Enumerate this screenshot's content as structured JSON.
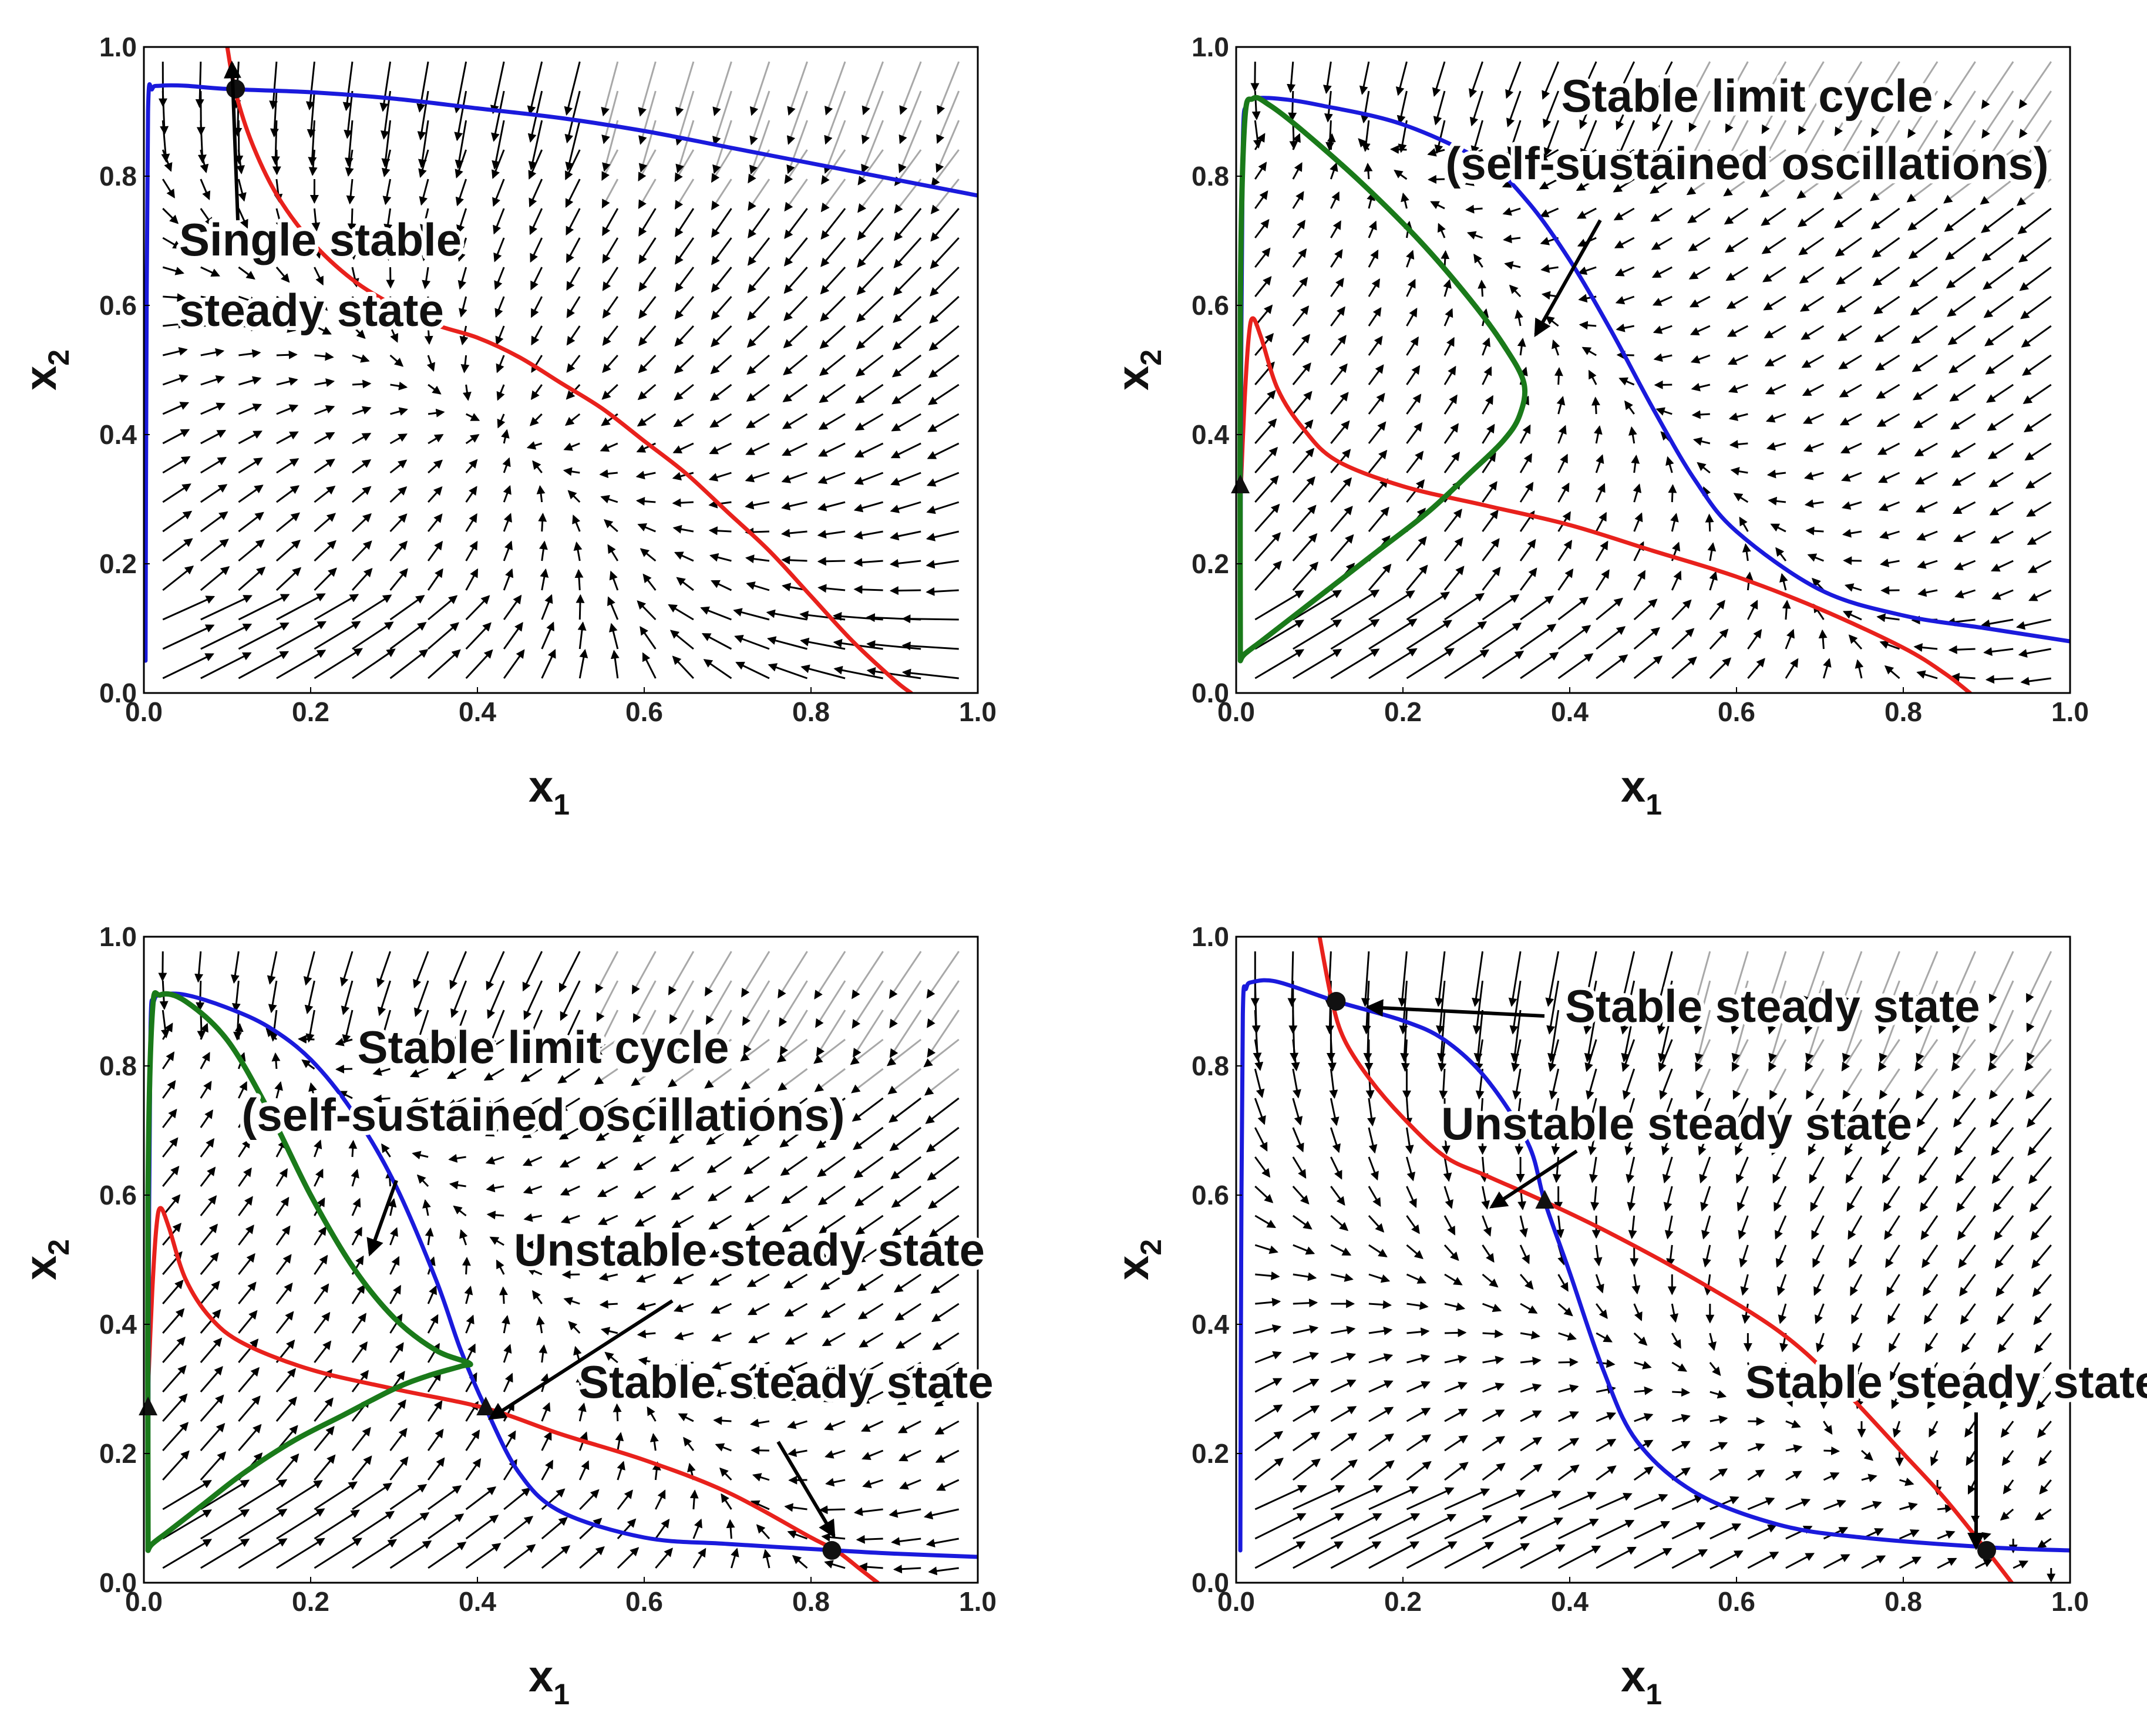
{
  "figure": {
    "panels_count": 4
  },
  "colors": {
    "red_nullcline": "#e8211c",
    "blue_nullcline": "#1a1adc",
    "green_orbit": "#1a7a1a",
    "arrow_dark": "#000000",
    "arrow_light": "#a8a8a8",
    "marker": "#111111"
  },
  "chart_data": [
    {
      "type": "line",
      "panel": 1,
      "xlabel": "x",
      "xlabel_sub": "1",
      "ylabel": "x",
      "ylabel_sub": "2",
      "xlim": [
        0,
        1
      ],
      "ylim": [
        0,
        1
      ],
      "xticks": [
        "0.0",
        "0.2",
        "0.4",
        "0.6",
        "0.8",
        "1.0"
      ],
      "yticks": [
        "0.0",
        "0.2",
        "0.4",
        "0.6",
        "0.8",
        "1.0"
      ],
      "grid": false,
      "vector_field": true,
      "series": [
        {
          "color": "red",
          "x": [
            0.1,
            0.11,
            0.13,
            0.16,
            0.2,
            0.25,
            0.3,
            0.35,
            0.4,
            0.45,
            0.5,
            0.55,
            0.6,
            0.65,
            0.7,
            0.75,
            0.8,
            0.85,
            0.9,
            0.92
          ],
          "y": [
            1.0,
            0.93,
            0.85,
            0.77,
            0.7,
            0.64,
            0.6,
            0.57,
            0.55,
            0.52,
            0.48,
            0.44,
            0.39,
            0.34,
            0.28,
            0.22,
            0.15,
            0.08,
            0.02,
            0.0
          ]
        },
        {
          "color": "blue",
          "x": [
            0.002,
            0.003,
            0.005,
            0.01,
            0.02,
            0.05,
            0.1,
            0.2,
            0.3,
            0.4,
            0.5,
            0.6,
            0.7,
            0.8,
            0.9,
            1.0
          ],
          "y": [
            0.05,
            0.5,
            0.9,
            0.935,
            0.94,
            0.94,
            0.935,
            0.93,
            0.92,
            0.905,
            0.89,
            0.87,
            0.845,
            0.82,
            0.795,
            0.77
          ]
        }
      ],
      "points": [
        {
          "x": 0.11,
          "y": 0.935,
          "kind": "stable"
        }
      ],
      "annotations": [
        {
          "text_lines": [
            "Single stable",
            "steady state"
          ],
          "at": [
            0.11,
            0.935
          ]
        }
      ]
    },
    {
      "type": "line",
      "panel": 2,
      "xlabel": "x",
      "xlabel_sub": "1",
      "ylabel": "x",
      "ylabel_sub": "2",
      "xlim": [
        0,
        1
      ],
      "ylim": [
        0,
        1
      ],
      "xticks": [
        "0.0",
        "0.2",
        "0.4",
        "0.6",
        "0.8",
        "1.0"
      ],
      "yticks": [
        "0.0",
        "0.2",
        "0.4",
        "0.6",
        "0.8",
        "1.0"
      ],
      "grid": false,
      "vector_field": true,
      "series": [
        {
          "color": "red",
          "x": [
            0.005,
            0.01,
            0.015,
            0.02,
            0.03,
            0.05,
            0.08,
            0.12,
            0.2,
            0.3,
            0.4,
            0.5,
            0.6,
            0.7,
            0.8,
            0.85,
            0.88
          ],
          "y": [
            0.3,
            0.45,
            0.55,
            0.58,
            0.55,
            0.47,
            0.41,
            0.36,
            0.32,
            0.29,
            0.26,
            0.22,
            0.18,
            0.13,
            0.07,
            0.03,
            0.0
          ]
        },
        {
          "color": "blue",
          "x": [
            0.005,
            0.006,
            0.008,
            0.012,
            0.02,
            0.05,
            0.1,
            0.2,
            0.3,
            0.35,
            0.4,
            0.45,
            0.5,
            0.55,
            0.6,
            0.7,
            0.8,
            0.9,
            1.0
          ],
          "y": [
            0.05,
            0.5,
            0.85,
            0.91,
            0.92,
            0.92,
            0.91,
            0.88,
            0.82,
            0.76,
            0.67,
            0.56,
            0.44,
            0.33,
            0.25,
            0.16,
            0.12,
            0.1,
            0.08
          ]
        },
        {
          "color": "green",
          "x": [
            0.005,
            0.005,
            0.01,
            0.02,
            0.04,
            0.08,
            0.15,
            0.22,
            0.28,
            0.32,
            0.345,
            0.34,
            0.32,
            0.28,
            0.23,
            0.17,
            0.11,
            0.06,
            0.03,
            0.01,
            0.005
          ],
          "y": [
            0.05,
            0.6,
            0.88,
            0.92,
            0.91,
            0.87,
            0.79,
            0.7,
            0.61,
            0.54,
            0.48,
            0.43,
            0.39,
            0.34,
            0.28,
            0.22,
            0.16,
            0.11,
            0.08,
            0.06,
            0.05
          ]
        }
      ],
      "points": [
        {
          "x": 0.005,
          "y": 0.32,
          "kind": "unstable"
        }
      ],
      "annotations": [
        {
          "text_lines": [
            "Stable limit cycle",
            "(self-sustained oscillations)"
          ],
          "at": [
            0.35,
            0.55
          ]
        }
      ]
    },
    {
      "type": "line",
      "panel": 3,
      "xlabel": "x",
      "xlabel_sub": "1",
      "ylabel": "x",
      "ylabel_sub": "2",
      "xlim": [
        0,
        1
      ],
      "ylim": [
        0,
        1
      ],
      "xticks": [
        "0.0",
        "0.2",
        "0.4",
        "0.6",
        "0.8",
        "1.0"
      ],
      "yticks": [
        "0.0",
        "0.2",
        "0.4",
        "0.6",
        "0.8",
        "1.0"
      ],
      "grid": false,
      "vector_field": true,
      "series": [
        {
          "color": "red",
          "x": [
            0.005,
            0.01,
            0.015,
            0.02,
            0.03,
            0.05,
            0.08,
            0.12,
            0.2,
            0.3,
            0.41,
            0.5,
            0.6,
            0.7,
            0.8,
            0.83,
            0.86,
            0.88
          ],
          "y": [
            0.3,
            0.45,
            0.55,
            0.58,
            0.55,
            0.47,
            0.41,
            0.37,
            0.33,
            0.3,
            0.27,
            0.23,
            0.19,
            0.14,
            0.07,
            0.05,
            0.02,
            0.0
          ]
        },
        {
          "color": "blue",
          "x": [
            0.005,
            0.006,
            0.008,
            0.012,
            0.02,
            0.05,
            0.1,
            0.15,
            0.2,
            0.25,
            0.3,
            0.35,
            0.38,
            0.41,
            0.45,
            0.5,
            0.6,
            0.7,
            0.83,
            0.9,
            1.0
          ],
          "y": [
            0.05,
            0.5,
            0.86,
            0.9,
            0.91,
            0.91,
            0.89,
            0.86,
            0.81,
            0.73,
            0.62,
            0.47,
            0.36,
            0.27,
            0.17,
            0.11,
            0.07,
            0.06,
            0.05,
            0.045,
            0.04
          ]
        },
        {
          "color": "green",
          "x": [
            0.005,
            0.005,
            0.01,
            0.02,
            0.05,
            0.1,
            0.15,
            0.2,
            0.25,
            0.3,
            0.35,
            0.39,
            0.38,
            0.34,
            0.3,
            0.24,
            0.18,
            0.12,
            0.07,
            0.03,
            0.01,
            0.005
          ],
          "y": [
            0.05,
            0.6,
            0.88,
            0.91,
            0.9,
            0.84,
            0.73,
            0.6,
            0.49,
            0.41,
            0.36,
            0.34,
            0.335,
            0.32,
            0.3,
            0.26,
            0.22,
            0.17,
            0.12,
            0.08,
            0.06,
            0.05
          ]
        }
      ],
      "points": [
        {
          "x": 0.005,
          "y": 0.27,
          "kind": "unstable"
        },
        {
          "x": 0.41,
          "y": 0.27,
          "kind": "unstable"
        },
        {
          "x": 0.825,
          "y": 0.05,
          "kind": "stable"
        }
      ],
      "annotations": [
        {
          "text_lines": [
            "Stable limit cycle",
            "(self-sustained oscillations)"
          ],
          "at": [
            0.27,
            0.51
          ]
        },
        {
          "text_lines": [
            "Unstable steady state"
          ],
          "at": [
            0.41,
            0.27
          ]
        },
        {
          "text_lines": [
            "Stable steady state"
          ],
          "at": [
            0.825,
            0.05
          ]
        }
      ]
    },
    {
      "type": "line",
      "panel": 4,
      "xlabel": "x",
      "xlabel_sub": "1",
      "ylabel": "x",
      "ylabel_sub": "2",
      "xlim": [
        0,
        1
      ],
      "ylim": [
        0,
        1
      ],
      "xticks": [
        "0.0",
        "0.2",
        "0.4",
        "0.6",
        "0.8",
        "1.0"
      ],
      "yticks": [
        "0.0",
        "0.2",
        "0.4",
        "0.6",
        "0.8",
        "1.0"
      ],
      "grid": false,
      "vector_field": true,
      "series": [
        {
          "color": "red",
          "x": [
            0.1,
            0.115,
            0.13,
            0.16,
            0.2,
            0.25,
            0.3,
            0.37,
            0.45,
            0.55,
            0.65,
            0.72,
            0.8,
            0.85,
            0.9,
            0.93
          ],
          "y": [
            1.0,
            0.9,
            0.84,
            0.78,
            0.72,
            0.66,
            0.63,
            0.59,
            0.54,
            0.47,
            0.39,
            0.31,
            0.2,
            0.13,
            0.05,
            0.0
          ]
        },
        {
          "color": "blue",
          "x": [
            0.005,
            0.006,
            0.008,
            0.012,
            0.02,
            0.05,
            0.12,
            0.2,
            0.25,
            0.3,
            0.35,
            0.37,
            0.4,
            0.44,
            0.48,
            0.55,
            0.65,
            0.75,
            0.9,
            1.0
          ],
          "y": [
            0.05,
            0.5,
            0.88,
            0.92,
            0.93,
            0.93,
            0.9,
            0.87,
            0.84,
            0.78,
            0.68,
            0.59,
            0.48,
            0.33,
            0.22,
            0.14,
            0.09,
            0.07,
            0.055,
            0.05
          ]
        }
      ],
      "points": [
        {
          "x": 0.12,
          "y": 0.9,
          "kind": "stable"
        },
        {
          "x": 0.37,
          "y": 0.59,
          "kind": "unstable"
        },
        {
          "x": 0.9,
          "y": 0.05,
          "kind": "stable"
        }
      ],
      "annotations": [
        {
          "text_lines": [
            "Stable steady state"
          ],
          "at": [
            0.12,
            0.9
          ]
        },
        {
          "text_lines": [
            "Unstable steady state"
          ],
          "at": [
            0.37,
            0.59
          ]
        },
        {
          "text_lines": [
            "Stable steady state"
          ],
          "at": [
            0.9,
            0.05
          ]
        }
      ]
    }
  ]
}
